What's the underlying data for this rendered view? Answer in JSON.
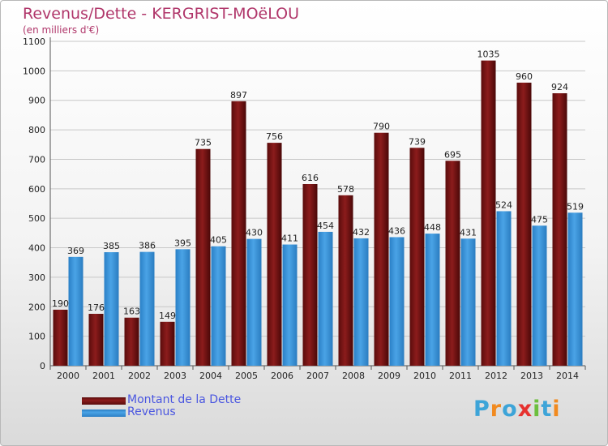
{
  "title": "Revenus/Dette - KERGRIST-MOëLOU",
  "subtitle": "(en milliers d'€)",
  "logo": {
    "text": "Proxiti",
    "colors": [
      "#3da4d8",
      "#f18a1f",
      "#3da4d8",
      "#e6312f",
      "#6cbf3e",
      "#3da4d8",
      "#f18a1f"
    ]
  },
  "colors": {
    "dette": "#8c1c1c",
    "revenus": "#4aa3e6",
    "axis_text": "#222222",
    "grid": "#c8c8c8"
  },
  "chart_data": {
    "type": "bar",
    "title": "Revenus/Dette - KERGRIST-MOëLOU",
    "subtitle": "(en milliers d'€)",
    "categories": [
      "2000",
      "2001",
      "2002",
      "2003",
      "2004",
      "2005",
      "2006",
      "2007",
      "2008",
      "2009",
      "2010",
      "2011",
      "2012",
      "2013",
      "2014"
    ],
    "series": [
      {
        "name": "Montant de la Dette",
        "values": [
          190,
          176,
          163,
          149,
          735,
          897,
          756,
          616,
          578,
          790,
          739,
          695,
          1035,
          960,
          924
        ]
      },
      {
        "name": "Revenus",
        "values": [
          369,
          385,
          386,
          395,
          405,
          430,
          411,
          454,
          432,
          436,
          448,
          431,
          524,
          475,
          519
        ]
      }
    ],
    "ylim": [
      0,
      1100
    ],
    "yticks": [
      0,
      100,
      200,
      300,
      400,
      500,
      600,
      700,
      800,
      900,
      1000,
      1100
    ],
    "grid": true,
    "legend": "bottom-left"
  }
}
